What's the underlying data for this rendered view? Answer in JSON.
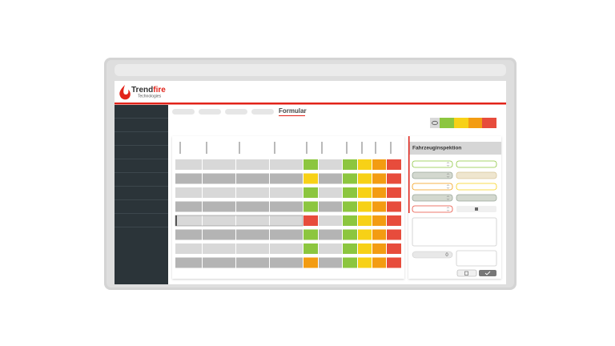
{
  "logo": {
    "brand_dark": "Trend",
    "brand_red": "fire",
    "tagline": "Technologies"
  },
  "tabs": {
    "active": "Formular"
  },
  "panel": {
    "title": "Fahrzeuginspektion",
    "counter": "0"
  }
}
